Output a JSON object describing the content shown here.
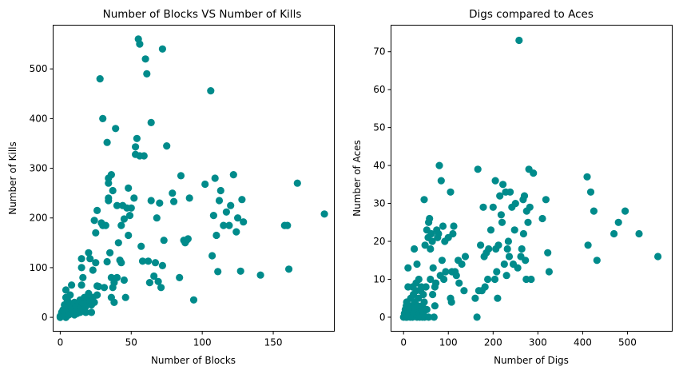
{
  "chart_data": [
    {
      "type": "scatter",
      "title": "Number of Blocks VS Number of Kills",
      "xlabel": "Number of Blocks",
      "ylabel": "Number of Kills",
      "xlim": [
        -5,
        193
      ],
      "ylim": [
        -28,
        588
      ],
      "xticks": [
        0,
        50,
        100,
        150
      ],
      "yticks": [
        0,
        100,
        200,
        300,
        400,
        500
      ],
      "color": "#008b8b",
      "grid": false,
      "points": [
        [
          0,
          0
        ],
        [
          0,
          2
        ],
        [
          1,
          5
        ],
        [
          1,
          10
        ],
        [
          2,
          3
        ],
        [
          2,
          15
        ],
        [
          3,
          8
        ],
        [
          3,
          25
        ],
        [
          4,
          0
        ],
        [
          4,
          40
        ],
        [
          4,
          55
        ],
        [
          5,
          20
        ],
        [
          5,
          35
        ],
        [
          6,
          12
        ],
        [
          6,
          5
        ],
        [
          7,
          28
        ],
        [
          7,
          45
        ],
        [
          8,
          65
        ],
        [
          8,
          18
        ],
        [
          9,
          10
        ],
        [
          10,
          30
        ],
        [
          10,
          5
        ],
        [
          11,
          22
        ],
        [
          12,
          15
        ],
        [
          12,
          8
        ],
        [
          13,
          25
        ],
        [
          14,
          35
        ],
        [
          14,
          10
        ],
        [
          15,
          100
        ],
        [
          15,
          118
        ],
        [
          15,
          20
        ],
        [
          15,
          65
        ],
        [
          16,
          80
        ],
        [
          16,
          28
        ],
        [
          17,
          40
        ],
        [
          18,
          22
        ],
        [
          18,
          10
        ],
        [
          19,
          35
        ],
        [
          20,
          130
        ],
        [
          20,
          48
        ],
        [
          21,
          118
        ],
        [
          21,
          30
        ],
        [
          22,
          25
        ],
        [
          22,
          10
        ],
        [
          23,
          95
        ],
        [
          23,
          40
        ],
        [
          24,
          195
        ],
        [
          24,
          30
        ],
        [
          25,
          170
        ],
        [
          25,
          110
        ],
        [
          26,
          63
        ],
        [
          26,
          45
        ],
        [
          26,
          215
        ],
        [
          27,
          62
        ],
        [
          28,
          480
        ],
        [
          29,
          190
        ],
        [
          30,
          400
        ],
        [
          30,
          185
        ],
        [
          31,
          60
        ],
        [
          32,
          185
        ],
        [
          33,
          112
        ],
        [
          33,
          352
        ],
        [
          34,
          270
        ],
        [
          34,
          240
        ],
        [
          34,
          235
        ],
        [
          34,
          280
        ],
        [
          35,
          130
        ],
        [
          36,
          287
        ],
        [
          36,
          40
        ],
        [
          36,
          80
        ],
        [
          37,
          255
        ],
        [
          37,
          60
        ],
        [
          38,
          70
        ],
        [
          38,
          30
        ],
        [
          39,
          380
        ],
        [
          40,
          225
        ],
        [
          40,
          80
        ],
        [
          41,
          150
        ],
        [
          42,
          115
        ],
        [
          43,
          110
        ],
        [
          43,
          185
        ],
        [
          44,
          225
        ],
        [
          45,
          198
        ],
        [
          45,
          75
        ],
        [
          46,
          40
        ],
        [
          47,
          220
        ],
        [
          48,
          165
        ],
        [
          48,
          260
        ],
        [
          49,
          205
        ],
        [
          50,
          220
        ],
        [
          52,
          240
        ],
        [
          53,
          343
        ],
        [
          53,
          328
        ],
        [
          54,
          360
        ],
        [
          55,
          560
        ],
        [
          56,
          550
        ],
        [
          56,
          325
        ],
        [
          57,
          143
        ],
        [
          58,
          113
        ],
        [
          59,
          325
        ],
        [
          60,
          520
        ],
        [
          61,
          490
        ],
        [
          62,
          113
        ],
        [
          63,
          70
        ],
        [
          64,
          392
        ],
        [
          64,
          235
        ],
        [
          66,
          83
        ],
        [
          67,
          110
        ],
        [
          68,
          200
        ],
        [
          69,
          72
        ],
        [
          70,
          230
        ],
        [
          71,
          60
        ],
        [
          72,
          104
        ],
        [
          72,
          540
        ],
        [
          73,
          155
        ],
        [
          75,
          345
        ],
        [
          79,
          250
        ],
        [
          80,
          233
        ],
        [
          84,
          80
        ],
        [
          85,
          285
        ],
        [
          87,
          155
        ],
        [
          88,
          150
        ],
        [
          89,
          155
        ],
        [
          90,
          158
        ],
        [
          91,
          240
        ],
        [
          94,
          35
        ],
        [
          102,
          268
        ],
        [
          106,
          456
        ],
        [
          107,
          124
        ],
        [
          108,
          205
        ],
        [
          109,
          280
        ],
        [
          110,
          165
        ],
        [
          111,
          92
        ],
        [
          112,
          235
        ],
        [
          113,
          255
        ],
        [
          115,
          185
        ],
        [
          117,
          212
        ],
        [
          119,
          185
        ],
        [
          120,
          225
        ],
        [
          122,
          287
        ],
        [
          124,
          172
        ],
        [
          125,
          200
        ],
        [
          127,
          93
        ],
        [
          128,
          237
        ],
        [
          129,
          192
        ],
        [
          141,
          85
        ],
        [
          158,
          185
        ],
        [
          160,
          185
        ],
        [
          161,
          97
        ],
        [
          167,
          270
        ],
        [
          186,
          208
        ]
      ]
    },
    {
      "type": "scatter",
      "title": "Digs compared to Aces",
      "xlabel": "Number of Digs",
      "ylabel": "Number of Aces",
      "xlim": [
        -28,
        600
      ],
      "ylim": [
        -3.7,
        77
      ],
      "xticks": [
        0,
        100,
        200,
        300,
        400,
        500
      ],
      "yticks": [
        0,
        10,
        20,
        30,
        40,
        50,
        60,
        70
      ],
      "color": "#008b8b",
      "grid": false,
      "points": [
        [
          0,
          0
        ],
        [
          2,
          1
        ],
        [
          4,
          2
        ],
        [
          5,
          0
        ],
        [
          6,
          3
        ],
        [
          7,
          4
        ],
        [
          8,
          0
        ],
        [
          10,
          13
        ],
        [
          10,
          8
        ],
        [
          12,
          1
        ],
        [
          14,
          2
        ],
        [
          15,
          0
        ],
        [
          16,
          5
        ],
        [
          18,
          3
        ],
        [
          20,
          8
        ],
        [
          20,
          0
        ],
        [
          22,
          6
        ],
        [
          22,
          1
        ],
        [
          24,
          18
        ],
        [
          25,
          4
        ],
        [
          26,
          2
        ],
        [
          28,
          9
        ],
        [
          28,
          7
        ],
        [
          30,
          0
        ],
        [
          30,
          14
        ],
        [
          32,
          3
        ],
        [
          33,
          5
        ],
        [
          34,
          10
        ],
        [
          35,
          1
        ],
        [
          36,
          0
        ],
        [
          38,
          7
        ],
        [
          40,
          2
        ],
        [
          40,
          8
        ],
        [
          42,
          0
        ],
        [
          42,
          3
        ],
        [
          44,
          6
        ],
        [
          44,
          1
        ],
        [
          46,
          31
        ],
        [
          46,
          4
        ],
        [
          47,
          0
        ],
        [
          48,
          19
        ],
        [
          50,
          8
        ],
        [
          52,
          23
        ],
        [
          52,
          2
        ],
        [
          55,
          21
        ],
        [
          56,
          25
        ],
        [
          56,
          0
        ],
        [
          58,
          26
        ],
        [
          60,
          18
        ],
        [
          60,
          10
        ],
        [
          62,
          22
        ],
        [
          64,
          20
        ],
        [
          65,
          6
        ],
        [
          66,
          13
        ],
        [
          68,
          0
        ],
        [
          70,
          3
        ],
        [
          70,
          8
        ],
        [
          72,
          9
        ],
        [
          74,
          23
        ],
        [
          76,
          21
        ],
        [
          78,
          22
        ],
        [
          80,
          40
        ],
        [
          82,
          11
        ],
        [
          84,
          36
        ],
        [
          86,
          15
        ],
        [
          88,
          24
        ],
        [
          90,
          10
        ],
        [
          92,
          20
        ],
        [
          94,
          12
        ],
        [
          100,
          21
        ],
        [
          105,
          33
        ],
        [
          105,
          5
        ],
        [
          107,
          4
        ],
        [
          108,
          12
        ],
        [
          110,
          22
        ],
        [
          112,
          24
        ],
        [
          115,
          12
        ],
        [
          118,
          11
        ],
        [
          122,
          15
        ],
        [
          124,
          9
        ],
        [
          130,
          14
        ],
        [
          135,
          7
        ],
        [
          138,
          16
        ],
        [
          160,
          5
        ],
        [
          164,
          0
        ],
        [
          166,
          39
        ],
        [
          168,
          7
        ],
        [
          172,
          19
        ],
        [
          175,
          7
        ],
        [
          178,
          29
        ],
        [
          180,
          16
        ],
        [
          182,
          8
        ],
        [
          185,
          17
        ],
        [
          188,
          10
        ],
        [
          190,
          18
        ],
        [
          195,
          23
        ],
        [
          200,
          29
        ],
        [
          204,
          10
        ],
        [
          205,
          36
        ],
        [
          206,
          18
        ],
        [
          208,
          12
        ],
        [
          210,
          5
        ],
        [
          212,
          19
        ],
        [
          215,
          32
        ],
        [
          218,
          27
        ],
        [
          220,
          25
        ],
        [
          222,
          35
        ],
        [
          225,
          14
        ],
        [
          228,
          33
        ],
        [
          230,
          11
        ],
        [
          232,
          18
        ],
        [
          234,
          20
        ],
        [
          236,
          16
        ],
        [
          238,
          33
        ],
        [
          242,
          29
        ],
        [
          245,
          14
        ],
        [
          248,
          23
        ],
        [
          250,
          30
        ],
        [
          255,
          13
        ],
        [
          258,
          73
        ],
        [
          262,
          16
        ],
        [
          264,
          18
        ],
        [
          267,
          31
        ],
        [
          268,
          22
        ],
        [
          270,
          32
        ],
        [
          272,
          15
        ],
        [
          274,
          10
        ],
        [
          275,
          28
        ],
        [
          278,
          25
        ],
        [
          280,
          39
        ],
        [
          282,
          29
        ],
        [
          285,
          10
        ],
        [
          290,
          38
        ],
        [
          310,
          26
        ],
        [
          318,
          31
        ],
        [
          322,
          17
        ],
        [
          325,
          12
        ],
        [
          410,
          37
        ],
        [
          412,
          19
        ],
        [
          418,
          33
        ],
        [
          425,
          28
        ],
        [
          432,
          15
        ],
        [
          470,
          22
        ],
        [
          480,
          25
        ],
        [
          495,
          28
        ],
        [
          526,
          22
        ],
        [
          568,
          16
        ]
      ]
    }
  ]
}
